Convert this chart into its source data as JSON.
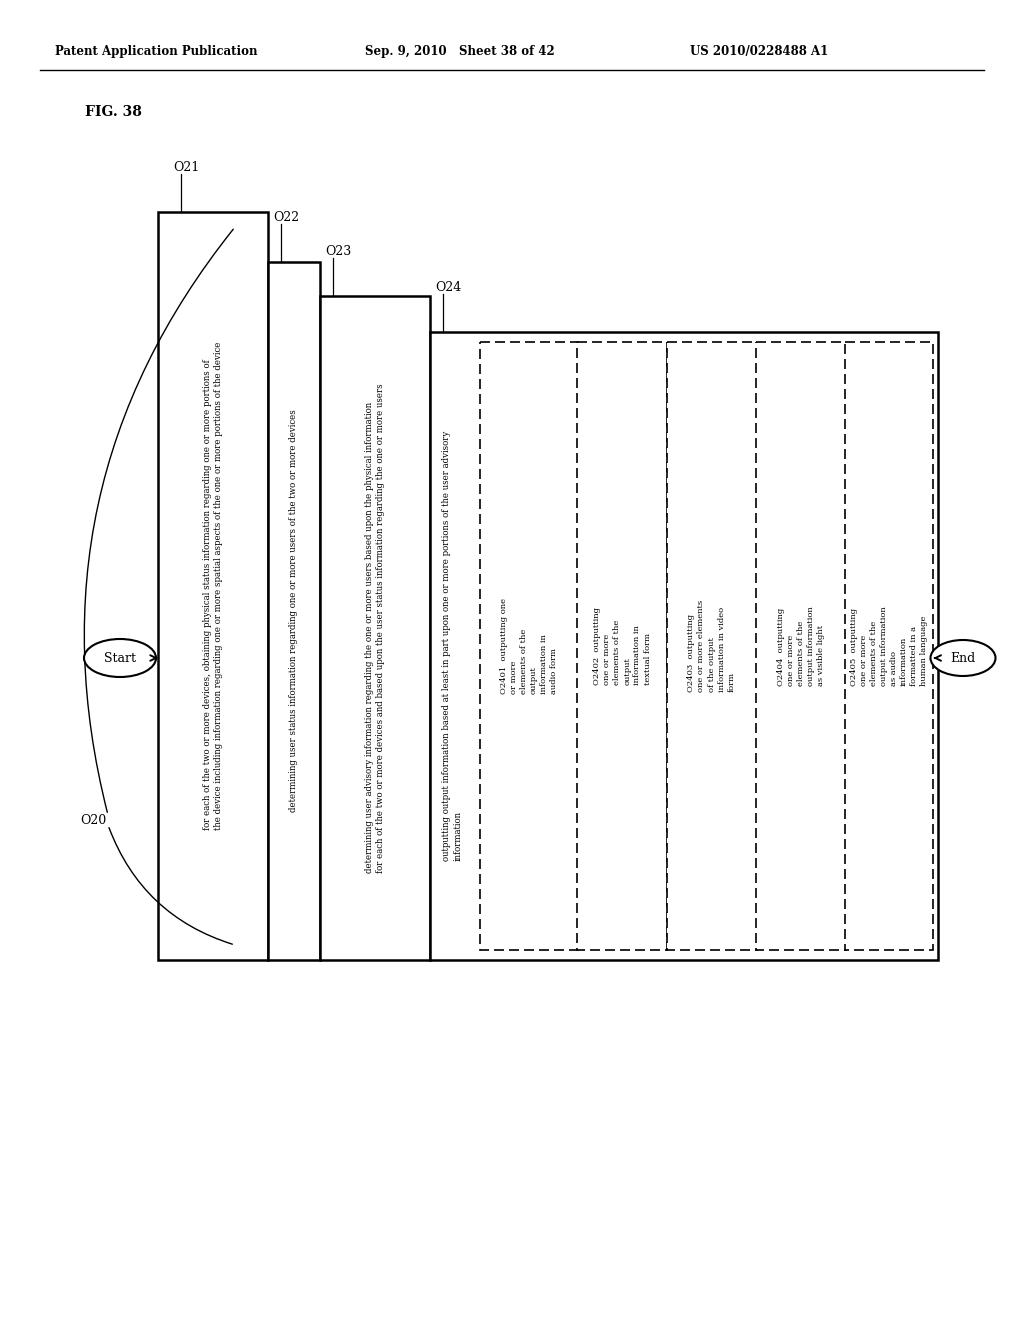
{
  "header_left": "Patent Application Publication",
  "header_mid": "Sep. 9, 2010   Sheet 38 of 42",
  "header_right": "US 2010/0228488 A1",
  "fig_label": "FIG. 38",
  "bg_color": "#ffffff",
  "start_label": "Start",
  "end_label": "End",
  "o20_label": "O20",
  "o21_label": "O21",
  "o22_label": "O22",
  "o23_label": "O23",
  "o24_label": "O24",
  "box_o21_text": "for each of the two or more devices, obtaining physical status information regarding one or more portions of\nthe device including information regarding one or more spatial aspects of the one or more portions of the device",
  "box_o22_text": "determining user status information regarding one or more users of the two or more devices",
  "box_o23_text": "determining user advisory information regarding the one or more users based upon the physical information\nfor each of the two or more devices and based upon the user status information regarding the one or more users",
  "box_o24_main_text": "outputting output information based at least in part upon one or more portions of the user advisory\ninformation",
  "sub_labels": [
    "O2401",
    "O2402",
    "O2403",
    "O2404",
    "O2405"
  ],
  "sub_texts": [
    "[O2401\noutputting one\nor more\nelements of the\noutput\ninformation in\naudio form",
    "[O2402  outputting\none or more\nelements of the\noutput\ninformation in\ntextual form",
    "O2403  outputting\none or more elements\nof the output\ninformation in video\nform",
    "O2404  outputting\none or more\nelements of the\noutput information\nas visible light",
    "[O2405  outputting\none or more\nelements of the\noutput information\nas audio\ninformation\nformatted in a\nhuman language"
  ]
}
